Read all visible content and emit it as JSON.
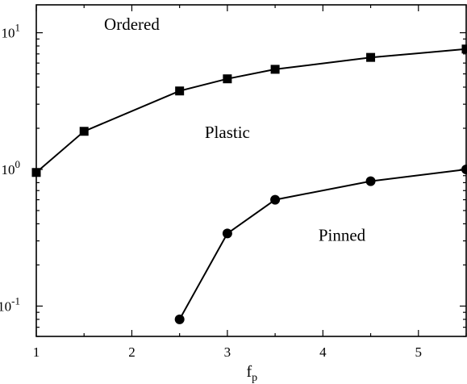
{
  "chart_data": {
    "type": "line",
    "title": "",
    "xlabel": "f",
    "xlabel_subscript": "p",
    "ylabel": "",
    "xlim": [
      1,
      5.5
    ],
    "ylim": [
      0.06,
      16
    ],
    "yscale": "log",
    "grid": false,
    "x_ticks": [
      1,
      2,
      3,
      4,
      5
    ],
    "x_tick_labels": [
      "1",
      "2",
      "3",
      "4",
      "5"
    ],
    "y_ticks": [
      0.1,
      1,
      10
    ],
    "y_tick_labels": [
      {
        "base": "10",
        "exp": "-1"
      },
      {
        "base": "10",
        "exp": "0"
      },
      {
        "base": "10",
        "exp": "1"
      }
    ],
    "series": [
      {
        "marker": "square",
        "color": "#000000",
        "x": [
          1,
          1.5,
          2.5,
          3,
          3.5,
          4.5,
          5.5
        ],
        "y": [
          0.95,
          1.9,
          3.75,
          4.6,
          5.4,
          6.6,
          7.6
        ]
      },
      {
        "marker": "circle",
        "color": "#000000",
        "x": [
          2.5,
          3,
          3.5,
          4.5,
          5.5
        ],
        "y": [
          0.08,
          0.34,
          0.6,
          0.82,
          1.0
        ]
      }
    ],
    "annotations": [
      {
        "text": "Ordered",
        "x": 2.0,
        "y": 10.5
      },
      {
        "text": "Plastic",
        "x": 3.0,
        "y": 1.7
      },
      {
        "text": "Pinned",
        "x": 4.2,
        "y": 0.3
      }
    ]
  }
}
